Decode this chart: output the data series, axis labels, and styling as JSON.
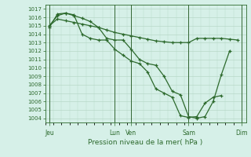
{
  "background_color": "#d6f0e8",
  "grid_color": "#b8d8c8",
  "line_color": "#2d6a2d",
  "xlabel": "Pression niveau de la mer( hPa )",
  "ylim": [
    1003.5,
    1017.5
  ],
  "yticks": [
    1004,
    1005,
    1006,
    1007,
    1008,
    1009,
    1010,
    1011,
    1012,
    1013,
    1014,
    1015,
    1016,
    1017
  ],
  "xtick_labels": [
    "Jeu",
    "Lun",
    "Ven",
    "Sam",
    "Dim"
  ],
  "xtick_positions": [
    0.5,
    8.5,
    10.5,
    17.5,
    24
  ],
  "vline_positions": [
    0.5,
    8.5,
    10.5,
    17.5,
    24
  ],
  "line1_x": [
    0.5,
    1.5,
    2.5,
    3.5,
    4.5,
    5.5,
    6.5,
    7.5,
    8.5,
    9.5,
    10.5,
    11.5,
    12.5,
    13.5,
    14.5,
    15.5,
    16.5,
    17.5,
    18.5,
    19.5,
    20.5,
    21.5,
    22.5,
    23.5
  ],
  "line1_y": [
    1015.0,
    1015.8,
    1015.6,
    1015.4,
    1015.2,
    1015.0,
    1014.8,
    1014.5,
    1014.2,
    1014.0,
    1013.8,
    1013.6,
    1013.4,
    1013.2,
    1013.1,
    1013.0,
    1013.0,
    1013.0,
    1013.5,
    1013.5,
    1013.5,
    1013.5,
    1013.4,
    1013.3
  ],
  "line2_x": [
    0.5,
    1.5,
    2.5,
    3.5,
    4.5,
    5.5,
    6.5,
    7.5,
    8.5,
    9.5,
    10.5,
    11.5,
    12.5,
    13.5,
    14.5,
    15.5,
    16.5,
    17.5,
    18.5,
    19.5,
    20.5,
    21.5,
    22.5
  ],
  "line2_y": [
    1015.0,
    1016.2,
    1016.5,
    1016.2,
    1015.9,
    1015.5,
    1014.8,
    1013.5,
    1013.3,
    1013.3,
    1012.2,
    1011.0,
    1010.5,
    1010.3,
    1009.0,
    1007.2,
    1006.8,
    1004.2,
    1004.0,
    1004.2,
    1006.0,
    1009.2,
    1012.0
  ],
  "line3_x": [
    0.5,
    1.5,
    2.5,
    3.5,
    4.5,
    5.5,
    6.5,
    7.5,
    8.5,
    9.5,
    10.5,
    11.5,
    12.5,
    13.5,
    14.5,
    15.5,
    16.5,
    17.5,
    18.5,
    19.5,
    20.5,
    21.5
  ],
  "line3_y": [
    1014.8,
    1016.4,
    1016.5,
    1016.3,
    1014.0,
    1013.5,
    1013.3,
    1013.3,
    1012.2,
    1011.5,
    1010.8,
    1010.5,
    1009.5,
    1007.5,
    1007.0,
    1006.5,
    1004.3,
    1004.1,
    1004.2,
    1005.8,
    1006.5,
    1006.7
  ],
  "xlim": [
    0,
    24.5
  ]
}
